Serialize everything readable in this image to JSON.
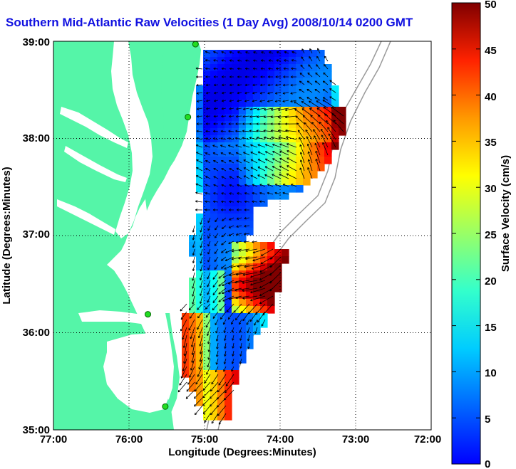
{
  "title": "Southern Mid-Atlantic Raw Velocities (1 Day Avg) 2008/10/14 0200 GMT",
  "map": {
    "xlabel": "Longitude (Degrees:Minutes)",
    "ylabel": "Latitude (Degrees:Minutes)",
    "x_ticks": [
      "77:00",
      "76:00",
      "75:00",
      "74:00",
      "73:00",
      "72:00"
    ],
    "y_ticks": [
      "39:00",
      "38:00",
      "37:00",
      "36:00",
      "35:00"
    ],
    "lon_range": [
      -77,
      -72
    ],
    "lat_range": [
      35,
      39
    ],
    "grid": "dotted",
    "land_color": "#55f5a8",
    "bathymetry_color": "#9a9a9a"
  },
  "colorbar": {
    "label": "Surface Velocity (cm/s)",
    "ticks": [
      "50",
      "45",
      "40",
      "35",
      "30",
      "25",
      "20",
      "15",
      "10",
      "5",
      "0"
    ],
    "range": [
      0,
      50
    ],
    "colormap": "jet"
  },
  "stations": [
    {
      "lon": -75.12,
      "lat": 38.97
    },
    {
      "lon": -75.22,
      "lat": 38.22
    },
    {
      "lon": -75.75,
      "lat": 36.19
    },
    {
      "lon": -75.52,
      "lat": 35.24
    }
  ]
}
